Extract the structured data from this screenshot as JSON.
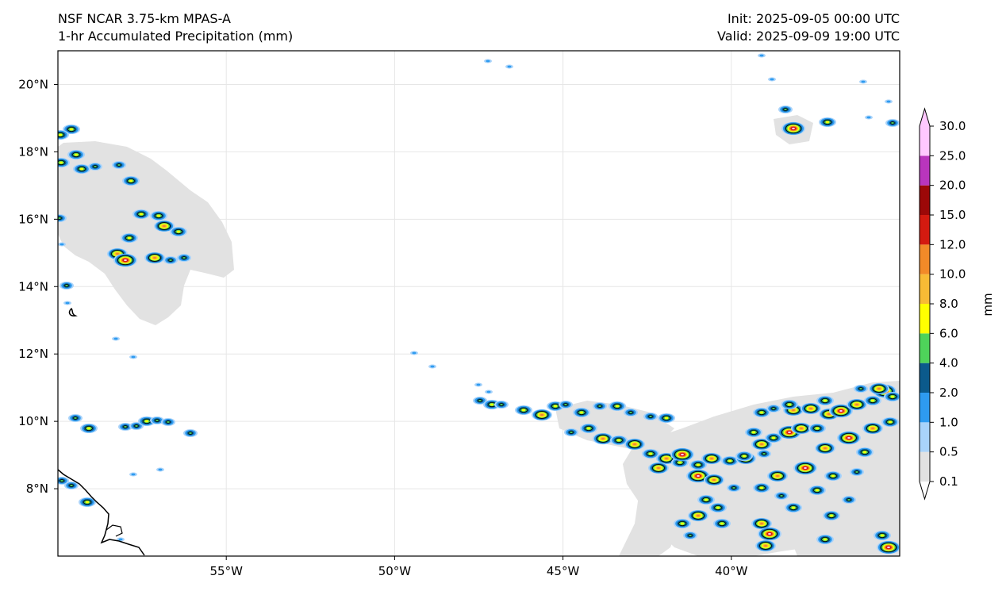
{
  "title": {
    "model": "NSF NCAR 3.75-km MPAS-A",
    "field": "1-hr Accumulated Precipitation (mm)",
    "init": "Init: 2025-09-05 00:00 UTC",
    "valid": "Valid: 2025-09-09 19:00 UTC"
  },
  "map": {
    "lon_range": [
      -60,
      -35
    ],
    "lat_range": [
      6.0,
      21.0
    ],
    "lon_ticks": [
      {
        "value": -55,
        "label": "55°W"
      },
      {
        "value": -50,
        "label": "50°W"
      },
      {
        "value": -45,
        "label": "45°W"
      },
      {
        "value": -40,
        "label": "40°W"
      }
    ],
    "lat_ticks": [
      {
        "value": 20,
        "label": "20°N"
      },
      {
        "value": 18,
        "label": "18°N"
      },
      {
        "value": 16,
        "label": "16°N"
      },
      {
        "value": 14,
        "label": "14°N"
      },
      {
        "value": 12,
        "label": "12°N"
      },
      {
        "value": 10,
        "label": "10°N"
      },
      {
        "value": 8,
        "label": "8°N"
      }
    ],
    "grid": true,
    "colors": {
      "light_precip": "#e2e2e2",
      "coastline": "#000000",
      "gridline": "#e6e6e6"
    }
  },
  "colorbar": {
    "label": "mm",
    "levels": [
      "0.1",
      "0.5",
      "1.0",
      "2.0",
      "4.0",
      "6.0",
      "8.0",
      "10.0",
      "12.0",
      "15.0",
      "20.0",
      "25.0",
      "30.0"
    ],
    "colors": [
      "#e2e2e2",
      "#a9d3fa",
      "#2e9bf0",
      "#0b5a8c",
      "#4ed35a",
      "#ffff00",
      "#f8bb35",
      "#f28a28",
      "#d41a10",
      "#9c0808",
      "#b935bd",
      "#ffc8ff"
    ]
  }
}
